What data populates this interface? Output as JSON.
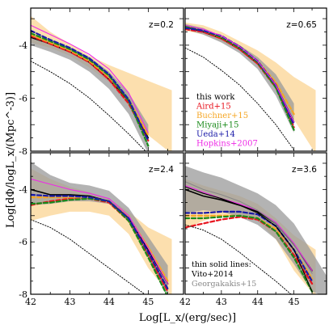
{
  "chart_data": {
    "type": "line",
    "xlabel": "Log[L_x/(erg/sec)]",
    "ylabel": "Log[dΦ/logL_x/(Mpc^-3)]",
    "xlim": [
      42,
      45.9
    ],
    "ylim": [
      -8,
      -2.6
    ],
    "x_ticks": [
      "42",
      "43",
      "44",
      "45"
    ],
    "y_ticks": [
      "-8",
      "-6",
      "-4"
    ],
    "legend": {
      "placement": "panel-2 lower-left",
      "entries": [
        {
          "label": "this work",
          "color": "#000000"
        },
        {
          "label": "Aird+15",
          "color": "#e8141e"
        },
        {
          "label": "Buchner+15",
          "color": "#f5a623"
        },
        {
          "label": "Miyaji+15",
          "color": "#1a8a1a"
        },
        {
          "label": "Ueda+14",
          "color": "#1a1aa8"
        },
        {
          "label": "Hopkins+2007",
          "color": "#ee2ae6"
        }
      ]
    },
    "notes": {
      "title": "thin solid lines:",
      "lines": [
        {
          "label": "Vito+2014",
          "color": "#000000"
        },
        {
          "label": "Georgakakis+15",
          "color": "#888888"
        }
      ]
    },
    "panels": [
      {
        "label": "z=0.2",
        "buchner_band": {
          "x": [
            42,
            42.5,
            43,
            43.5,
            44,
            44.5,
            45,
            45.6
          ],
          "upper": [
            -2.9,
            -3.5,
            -3.95,
            -4.4,
            -4.75,
            -5.05,
            -5.35,
            -5.7
          ],
          "lower": [
            -3.9,
            -4.1,
            -4.4,
            -4.85,
            -5.4,
            -6.3,
            -7.4,
            -8.1
          ]
        },
        "grey_band": {
          "x": [
            42,
            42.5,
            43,
            43.5,
            44,
            44.5,
            45
          ],
          "upper": [
            -3.6,
            -3.85,
            -4.1,
            -4.45,
            -5.0,
            -5.8,
            -7.0
          ],
          "lower": [
            -4.0,
            -4.25,
            -4.55,
            -5.0,
            -5.65,
            -6.6,
            -8.1
          ]
        },
        "series": [
          {
            "name": "this work",
            "x": [
              42,
              42.5,
              43,
              43.5,
              44,
              44.5,
              45
            ],
            "y": [
              -3.7,
              -3.95,
              -4.25,
              -4.65,
              -5.3,
              -6.1,
              -7.5
            ]
          },
          {
            "name": "Aird+15",
            "x": [
              42,
              42.5,
              43,
              43.5,
              44,
              44.5,
              45
            ],
            "y": [
              -3.65,
              -3.95,
              -4.25,
              -4.65,
              -5.3,
              -6.2,
              -7.6
            ]
          },
          {
            "name": "Buchner+15",
            "x": [
              42,
              42.5,
              43,
              43.5,
              44,
              44.5,
              45
            ],
            "y": [
              -3.6,
              -3.9,
              -4.2,
              -4.6,
              -5.2,
              -6.05,
              -7.4
            ]
          },
          {
            "name": "Miyaji+15",
            "x": [
              42,
              42.5,
              43,
              43.5,
              44,
              44.5,
              45
            ],
            "y": [
              -3.55,
              -3.85,
              -4.15,
              -4.55,
              -5.15,
              -6.1,
              -7.8
            ]
          },
          {
            "name": "Ueda+14",
            "x": [
              42,
              42.5,
              43,
              43.5,
              44,
              44.5,
              45
            ],
            "y": [
              -3.45,
              -3.8,
              -4.1,
              -4.5,
              -5.1,
              -6.05,
              -7.6
            ]
          },
          {
            "name": "Hopkins+2007",
            "x": [
              42,
              42.5,
              43,
              43.5,
              44,
              44.5,
              45
            ],
            "y": [
              -3.25,
              -3.6,
              -3.95,
              -4.35,
              -4.9,
              -5.8,
              -7.3
            ]
          },
          {
            "name": "dotted",
            "x": [
              42,
              42.5,
              43,
              43.5,
              44,
              44.5,
              45
            ],
            "y": [
              -4.6,
              -5.0,
              -5.45,
              -6.0,
              -6.65,
              -7.35,
              -8.1
            ]
          }
        ]
      },
      {
        "label": "z=0.65",
        "buchner_band": {
          "x": [
            42,
            42.5,
            43,
            43.5,
            44,
            44.5,
            45,
            45.6
          ],
          "upper": [
            -3.15,
            -3.25,
            -3.5,
            -3.85,
            -4.2,
            -4.65,
            -5.2,
            -5.7
          ],
          "lower": [
            -3.45,
            -3.6,
            -3.85,
            -4.2,
            -4.75,
            -5.6,
            -6.8,
            -8.1
          ]
        },
        "grey_band": {
          "x": [
            42,
            42.5,
            43,
            43.5,
            44,
            44.5,
            45
          ],
          "upper": [
            -3.2,
            -3.35,
            -3.65,
            -4.0,
            -4.45,
            -5.1,
            -6.2
          ],
          "lower": [
            -3.4,
            -3.6,
            -3.9,
            -4.3,
            -4.9,
            -5.9,
            -7.3
          ]
        },
        "series": [
          {
            "name": "this work",
            "x": [
              42,
              42.5,
              43,
              43.5,
              44,
              44.5,
              45
            ],
            "y": [
              -3.3,
              -3.5,
              -3.75,
              -4.15,
              -4.7,
              -5.5,
              -6.9
            ]
          },
          {
            "name": "Aird+15",
            "x": [
              42,
              42.5,
              43,
              43.5,
              44,
              44.5,
              45
            ],
            "y": [
              -3.4,
              -3.5,
              -3.75,
              -4.15,
              -4.7,
              -5.6,
              -7.1
            ]
          },
          {
            "name": "Buchner+15",
            "x": [
              42,
              42.5,
              43,
              43.5,
              44,
              44.5,
              45
            ],
            "y": [
              -3.3,
              -3.45,
              -3.7,
              -4.05,
              -4.6,
              -5.4,
              -6.6
            ]
          },
          {
            "name": "Miyaji+15",
            "x": [
              42,
              42.5,
              43,
              43.5,
              44,
              44.5,
              45
            ],
            "y": [
              -3.3,
              -3.45,
              -3.7,
              -4.1,
              -4.65,
              -5.6,
              -7.2
            ]
          },
          {
            "name": "Ueda+14",
            "x": [
              42,
              42.5,
              43,
              43.5,
              44,
              44.5,
              45
            ],
            "y": [
              -3.35,
              -3.45,
              -3.65,
              -4.05,
              -4.6,
              -5.5,
              -7.0
            ]
          },
          {
            "name": "Hopkins+2007",
            "x": [
              42,
              42.5,
              43,
              43.5,
              44,
              44.5,
              45
            ],
            "y": [
              -3.25,
              -3.4,
              -3.65,
              -4.05,
              -4.6,
              -5.5,
              -6.9
            ]
          },
          {
            "name": "dotted",
            "x": [
              42,
              42.5,
              43,
              43.5,
              44,
              44.5,
              45
            ],
            "y": [
              -4.1,
              -4.45,
              -4.95,
              -5.5,
              -6.2,
              -7.0,
              -7.95
            ]
          }
        ]
      },
      {
        "label": "z=2.4",
        "buchner_band": {
          "x": [
            42,
            42.5,
            43,
            43.5,
            44,
            44.5,
            45,
            45.6
          ],
          "upper": [
            -3.2,
            -3.6,
            -3.9,
            -4.1,
            -4.35,
            -4.85,
            -5.45,
            -5.9
          ],
          "lower": [
            -5.2,
            -5.0,
            -4.85,
            -4.85,
            -5.0,
            -5.7,
            -7.0,
            -8.1
          ]
        },
        "grey_band": {
          "x": [
            42,
            42.5,
            43,
            43.5,
            44,
            44.5,
            45,
            45.5
          ],
          "upper": [
            -2.95,
            -3.45,
            -3.75,
            -3.85,
            -4.05,
            -4.7,
            -5.8,
            -6.9
          ],
          "lower": [
            -4.6,
            -4.55,
            -4.45,
            -4.45,
            -4.55,
            -5.2,
            -6.6,
            -8.1
          ]
        },
        "series": [
          {
            "name": "this work",
            "x": [
              42,
              42.5,
              43,
              43.5,
              44,
              44.5,
              45,
              45.5
            ],
            "y": [
              -4.0,
              -4.2,
              -4.2,
              -4.25,
              -4.45,
              -5.1,
              -6.3,
              -7.6
            ]
          },
          {
            "name": "Aird+15",
            "x": [
              42,
              42.5,
              43,
              43.5,
              44,
              44.5,
              45,
              45.5
            ],
            "y": [
              -4.6,
              -4.45,
              -4.35,
              -4.35,
              -4.5,
              -5.2,
              -6.5,
              -7.9
            ]
          },
          {
            "name": "Buchner+15",
            "x": [
              42,
              42.5,
              43,
              43.5,
              44,
              44.5,
              45,
              45.5
            ],
            "y": [
              -4.3,
              -4.3,
              -4.3,
              -4.3,
              -4.45,
              -5.05,
              -6.2,
              -7.5
            ]
          },
          {
            "name": "Miyaji+15",
            "x": [
              42,
              42.5,
              43,
              43.5,
              44,
              44.5,
              45,
              45.5
            ],
            "y": [
              -4.55,
              -4.5,
              -4.4,
              -4.35,
              -4.45,
              -5.2,
              -6.6,
              -8.1
            ]
          },
          {
            "name": "Ueda+14",
            "x": [
              42,
              42.5,
              43,
              43.5,
              44,
              44.5,
              45,
              45.5
            ],
            "y": [
              -4.2,
              -4.25,
              -4.25,
              -4.3,
              -4.45,
              -5.1,
              -6.4,
              -7.8
            ]
          },
          {
            "name": "Hopkins+2007",
            "x": [
              42,
              42.5,
              43,
              43.5,
              44,
              44.5,
              45,
              45.5
            ],
            "y": [
              -3.6,
              -3.8,
              -4.0,
              -4.15,
              -4.35,
              -5.0,
              -6.25,
              -7.6
            ]
          },
          {
            "name": "dotted",
            "x": [
              42,
              42.5,
              43,
              43.5,
              44,
              44.5,
              45
            ],
            "y": [
              -5.15,
              -5.45,
              -5.9,
              -6.45,
              -7.0,
              -7.55,
              -8.1
            ]
          }
        ]
      },
      {
        "label": "z=3.6",
        "buchner_band": {
          "x": [
            42,
            42.5,
            43,
            43.5,
            44,
            44.5,
            45,
            45.6
          ],
          "upper": [
            -3.6,
            -3.85,
            -4.05,
            -4.25,
            -4.55,
            -5.1,
            -5.75,
            -6.3
          ],
          "lower": [
            -5.5,
            -5.2,
            -5.0,
            -5.0,
            -5.2,
            -5.9,
            -7.1,
            -8.1
          ]
        },
        "grey_band": {
          "x": [
            42,
            42.5,
            43,
            43.5,
            44,
            44.5,
            45,
            45.5,
            45.9
          ],
          "upper": [
            -3.1,
            -3.35,
            -3.55,
            -3.85,
            -4.15,
            -4.6,
            -5.3,
            -6.4,
            -7.3
          ],
          "lower": [
            -4.9,
            -4.8,
            -4.85,
            -5.05,
            -5.35,
            -5.9,
            -6.85,
            -7.9,
            -8.1
          ]
        },
        "series": [
          {
            "name": "this work",
            "x": [
              42,
              42.5,
              43,
              43.5,
              44,
              44.5,
              45,
              45.5
            ],
            "y": [
              -4.0,
              -4.25,
              -4.4,
              -4.6,
              -4.85,
              -5.3,
              -6.1,
              -7.1
            ]
          },
          {
            "name": "Aird+15",
            "x": [
              42,
              42.5,
              43,
              43.5,
              44,
              44.5,
              45,
              45.5
            ],
            "y": [
              -5.45,
              -5.3,
              -5.15,
              -5.05,
              -5.15,
              -5.6,
              -6.5,
              -7.6
            ]
          },
          {
            "name": "Buchner+15",
            "x": [
              42,
              42.5,
              43,
              43.5,
              44,
              44.5,
              45,
              45.5
            ],
            "y": [
              -5.0,
              -5.0,
              -5.0,
              -5.0,
              -5.1,
              -5.5,
              -6.3,
              -7.4
            ]
          },
          {
            "name": "Miyaji+15",
            "x": [
              42,
              42.5,
              43,
              43.5,
              44,
              44.5,
              45,
              45.5
            ],
            "y": [
              -5.1,
              -5.1,
              -5.05,
              -5.0,
              -5.1,
              -5.6,
              -6.6,
              -7.9
            ]
          },
          {
            "name": "Ueda+14",
            "x": [
              42,
              42.5,
              43,
              43.5,
              44,
              44.5,
              45,
              45.5
            ],
            "y": [
              -4.9,
              -4.9,
              -4.85,
              -4.85,
              -4.95,
              -5.4,
              -6.3,
              -7.5
            ]
          },
          {
            "name": "Hopkins+2007",
            "x": [
              42,
              42.5,
              43,
              43.5,
              44,
              44.5,
              45,
              45.5
            ],
            "y": [
              -3.85,
              -4.1,
              -4.35,
              -4.55,
              -4.8,
              -5.25,
              -6.05,
              -7.1
            ]
          },
          {
            "name": "Vito+2014",
            "x": [
              42,
              42.5,
              43,
              43.5,
              44,
              44.5,
              45,
              45.5
            ],
            "y": [
              -3.9,
              -4.15,
              -4.35,
              -4.6,
              -4.9,
              -5.4,
              -6.3,
              -7.9
            ]
          },
          {
            "name": "Georgakakis+15",
            "x": [
              42,
              42.5,
              43,
              43.5,
              44,
              44.5,
              45,
              45.5
            ],
            "y": [
              -3.7,
              -4.0,
              -4.2,
              -4.45,
              -4.8,
              -5.3,
              -6.1,
              -7.2
            ]
          },
          {
            "name": "dotted",
            "x": [
              42,
              42.5,
              43,
              43.5,
              44,
              44.5,
              45
            ],
            "y": [
              -5.35,
              -5.55,
              -5.9,
              -6.4,
              -6.95,
              -7.5,
              -8.1
            ]
          }
        ]
      }
    ]
  },
  "colors": {
    "this work": "#000000",
    "Aird+15": "#e8141e",
    "Buchner+15": "#f5a623",
    "Miyaji+15": "#1a8a1a",
    "Ueda+14": "#1a1aa8",
    "Hopkins+2007": "#ee2ae6",
    "Vito+2014": "#000000",
    "Georgakakis+15": "#888888",
    "dotted": "#000000",
    "buchner_band": "#fcd9a0",
    "grey_band": "#9a9a9a"
  }
}
